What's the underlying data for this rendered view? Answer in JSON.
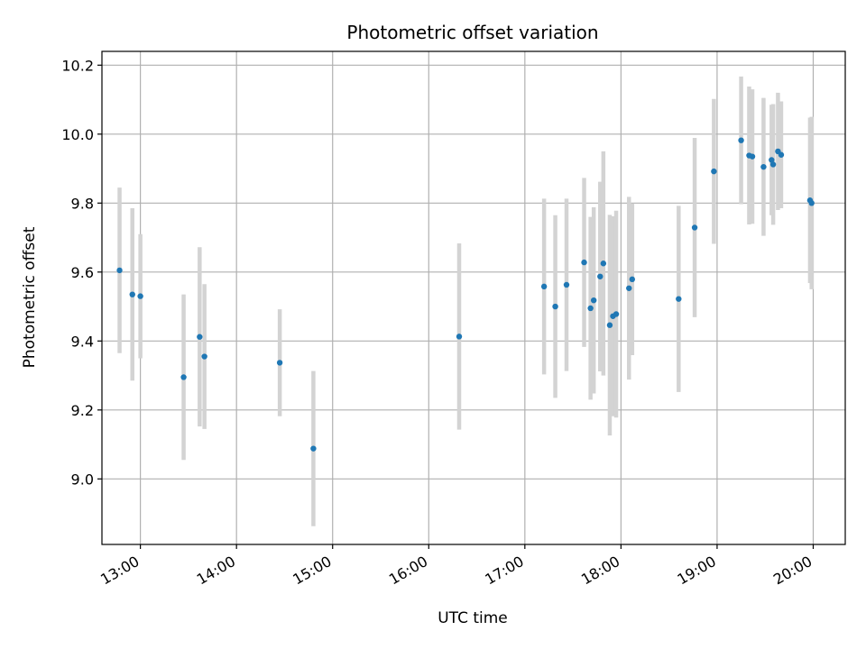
{
  "chart_data": {
    "type": "scatter",
    "title": "Photometric offset variation",
    "xlabel": "UTC time",
    "ylabel": "Photometric offset",
    "x_axis_type": "time",
    "xlim": [
      "12:36",
      "20:20"
    ],
    "ylim": [
      8.81,
      10.24
    ],
    "grid": true,
    "legend": "none",
    "x_ticks": [
      "13:00",
      "14:00",
      "15:00",
      "16:00",
      "17:00",
      "18:00",
      "19:00",
      "20:00"
    ],
    "y_ticks": [
      "9.0",
      "9.2",
      "9.4",
      "9.6",
      "9.8",
      "10.0",
      "10.2"
    ],
    "colors": {
      "points": "#1f77b4",
      "error_bars": "#d3d3d3",
      "grid": "#b0b0b0"
    },
    "points": [
      {
        "x": "12:47",
        "y": 9.605,
        "err": 0.24
      },
      {
        "x": "12:55",
        "y": 9.535,
        "err": 0.25
      },
      {
        "x": "13:00",
        "y": 9.53,
        "err": 0.18
      },
      {
        "x": "13:27",
        "y": 9.295,
        "err": 0.24
      },
      {
        "x": "13:37",
        "y": 9.412,
        "err": 0.26
      },
      {
        "x": "13:40",
        "y": 9.355,
        "err": 0.21
      },
      {
        "x": "14:27",
        "y": 9.337,
        "err": 0.155
      },
      {
        "x": "14:48",
        "y": 9.088,
        "err": 0.225
      },
      {
        "x": "16:19",
        "y": 9.413,
        "err": 0.27
      },
      {
        "x": "17:12",
        "y": 9.558,
        "err": 0.255
      },
      {
        "x": "17:19",
        "y": 9.5,
        "err": 0.265
      },
      {
        "x": "17:26",
        "y": 9.563,
        "err": 0.25
      },
      {
        "x": "17:37",
        "y": 9.628,
        "err": 0.245
      },
      {
        "x": "17:41",
        "y": 9.495,
        "err": 0.265
      },
      {
        "x": "17:43",
        "y": 9.518,
        "err": 0.27
      },
      {
        "x": "17:47",
        "y": 9.587,
        "err": 0.275
      },
      {
        "x": "17:49",
        "y": 9.625,
        "err": 0.325
      },
      {
        "x": "17:53",
        "y": 9.446,
        "err": 0.32
      },
      {
        "x": "17:55",
        "y": 9.472,
        "err": 0.29
      },
      {
        "x": "17:57",
        "y": 9.478,
        "err": 0.3
      },
      {
        "x": "18:05",
        "y": 9.553,
        "err": 0.265
      },
      {
        "x": "18:07",
        "y": 9.579,
        "err": 0.22
      },
      {
        "x": "18:36",
        "y": 9.522,
        "err": 0.27
      },
      {
        "x": "18:46",
        "y": 9.729,
        "err": 0.26
      },
      {
        "x": "18:58",
        "y": 9.892,
        "err": 0.21
      },
      {
        "x": "19:15",
        "y": 9.982,
        "err": 0.185
      },
      {
        "x": "19:20",
        "y": 9.938,
        "err": 0.2
      },
      {
        "x": "19:22",
        "y": 9.935,
        "err": 0.195
      },
      {
        "x": "19:29",
        "y": 9.905,
        "err": 0.2
      },
      {
        "x": "19:34",
        "y": 9.925,
        "err": 0.16
      },
      {
        "x": "19:35",
        "y": 9.912,
        "err": 0.175
      },
      {
        "x": "19:38",
        "y": 9.95,
        "err": 0.17
      },
      {
        "x": "19:40",
        "y": 9.94,
        "err": 0.155
      },
      {
        "x": "19:58",
        "y": 9.808,
        "err": 0.24
      },
      {
        "x": "19:59",
        "y": 9.8,
        "err": 0.25
      }
    ]
  }
}
